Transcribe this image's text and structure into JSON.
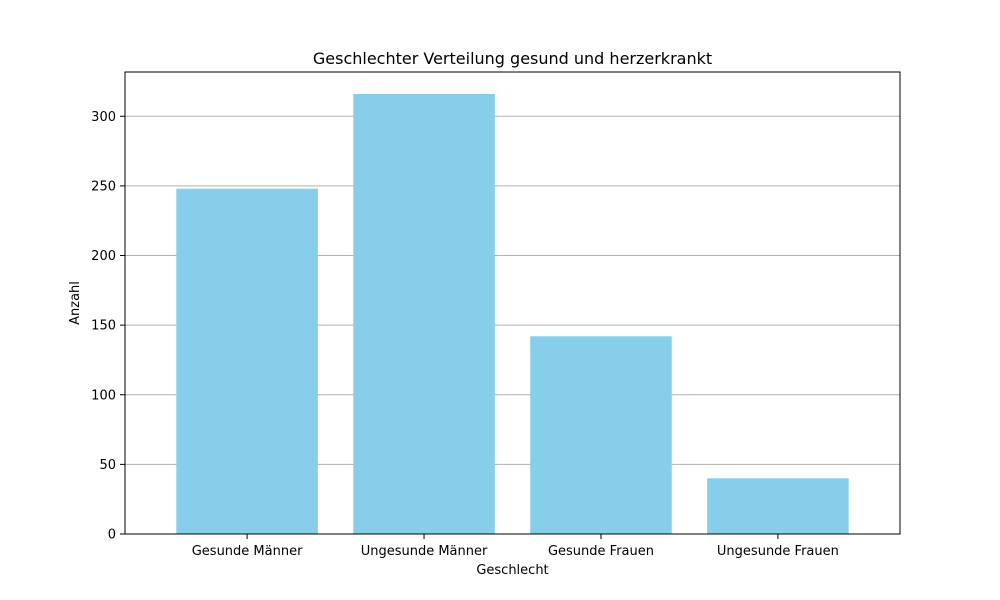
{
  "chart_data": {
    "type": "bar",
    "title": "Geschlechter Verteilung gesund und herzerkrankt",
    "xlabel": "Geschlecht",
    "ylabel": "Anzahl",
    "categories": [
      "Gesunde Männer",
      "Ungesunde Männer",
      "Gesunde Frauen",
      "Ungesunde Frauen"
    ],
    "values": [
      248,
      316,
      142,
      40
    ],
    "ylim": [
      0,
      331.8
    ],
    "yticks": [
      0,
      50,
      100,
      150,
      200,
      250,
      300
    ],
    "grid": "y",
    "bar_color": "#87ceeb",
    "grid_color": "#b0b0b0"
  }
}
